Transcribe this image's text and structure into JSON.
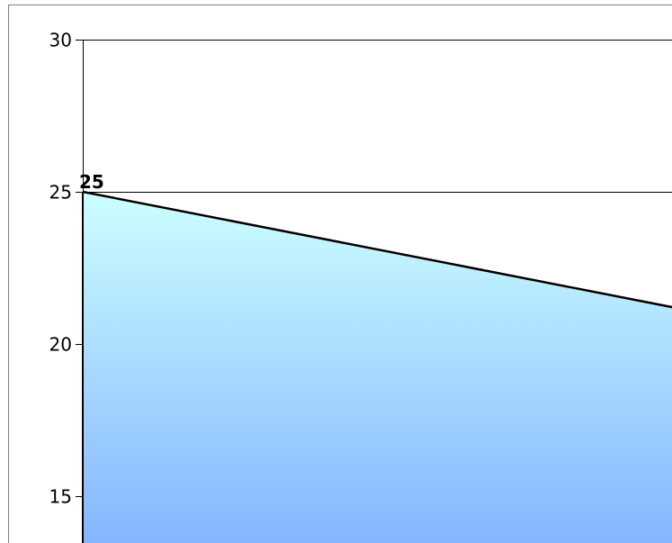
{
  "chart_data": {
    "type": "area",
    "title": "",
    "xlabel": "",
    "ylabel": "",
    "ylim": [
      13.6,
      30
    ],
    "yticks": [
      15,
      20,
      25,
      30
    ],
    "grid": "horizontal",
    "legend": "none",
    "series": [
      {
        "points": [
          {
            "x": 0,
            "y": 25,
            "label": "25"
          },
          {
            "x": 1,
            "y": 21.2
          }
        ]
      }
    ],
    "colors": {
      "fill_top": "#ccffff",
      "fill_bottom": "#85b5ff",
      "line": "#000000",
      "grid": "#000000",
      "frame": "#808080"
    }
  }
}
